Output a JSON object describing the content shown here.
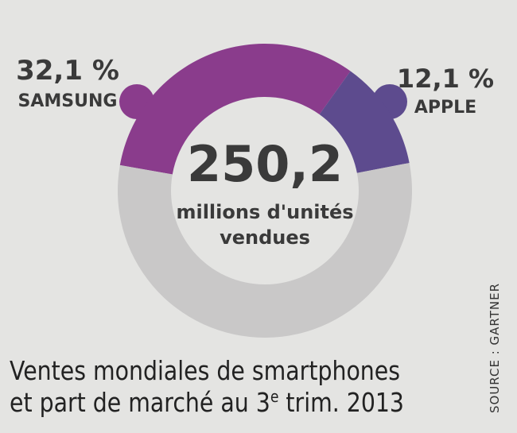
{
  "chart_data": {
    "type": "donut",
    "categories": [
      "SAMSUNG",
      "APPLE",
      null
    ],
    "values": [
      32.1,
      12.1,
      55.8
    ],
    "value_labels": [
      "32,1 %",
      "12,1 %",
      null
    ],
    "colors": [
      "#8a3c8c",
      "#5d4b8e",
      "#c9c8c8"
    ],
    "center_value": "250,2",
    "center_text": [
      "millions d'unités",
      "vendues"
    ],
    "title": {
      "line1": "Ventes mondiales de smartphones",
      "line2_before": "et part de marché au 3",
      "line2_sup": "e",
      "line2_after": " trim. 2013"
    },
    "source": "SOURCE : GARTNER"
  }
}
